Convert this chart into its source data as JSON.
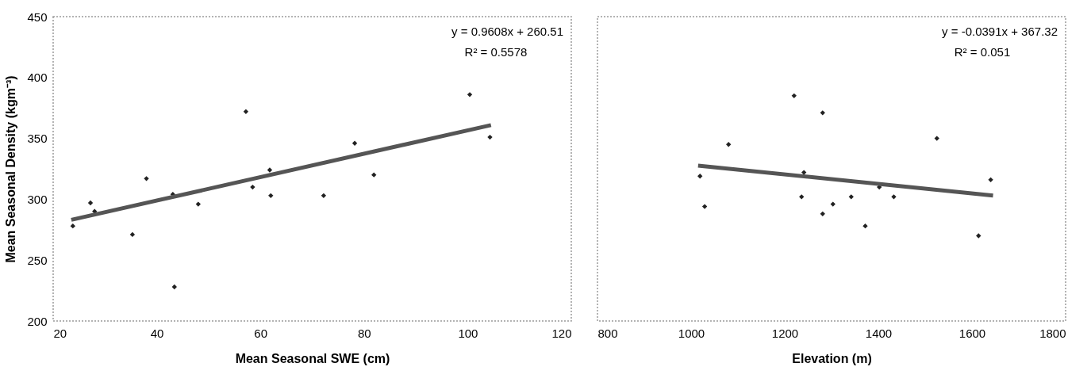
{
  "chart_data": [
    {
      "type": "scatter",
      "xlabel": "Mean Seasonal SWE (cm)",
      "ylabel": "Mean Seasonal Density (kgm⁻³)",
      "xlim": [
        20,
        120
      ],
      "xticks": [
        20,
        40,
        60,
        80,
        100,
        120
      ],
      "ylim": [
        200,
        450
      ],
      "yticks": [
        200,
        250,
        300,
        350,
        400,
        450
      ],
      "grid": false,
      "legend": false,
      "annotations": [
        "y = 0.9608x + 260.51",
        "R² = 0.5578"
      ],
      "series": [
        {
          "type": "scatter",
          "marker": "diamond",
          "color": "#222222",
          "x": [
            23.8,
            27.2,
            28.0,
            35.3,
            38.0,
            43.1,
            43.4,
            48.0,
            57.2,
            58.5,
            61.8,
            62.0,
            72.2,
            78.2,
            81.9,
            100.4,
            104.3
          ],
          "values": [
            278,
            297,
            290,
            271,
            317,
            304,
            228,
            296,
            372,
            310,
            324,
            303,
            303,
            346,
            320,
            386,
            351
          ]
        },
        {
          "type": "line",
          "color": "#555555",
          "line_style": "solid",
          "x": [
            23.5,
            104.5
          ],
          "values": [
            283.1,
            360.9
          ]
        }
      ]
    },
    {
      "type": "scatter",
      "xlabel": "Elevation (m)",
      "xlim": [
        800,
        1800
      ],
      "xticks": [
        800,
        1000,
        1200,
        1400,
        1600,
        1800
      ],
      "ylim": [
        200,
        450
      ],
      "yticks": [
        200,
        250,
        300,
        350,
        400,
        450
      ],
      "tick_labels": "x",
      "grid": false,
      "legend": false,
      "annotations": [
        "y = -0.0391x + 367.32",
        "R² = 0.051"
      ],
      "series": [
        {
          "type": "scatter",
          "marker": "diamond",
          "color": "#222222",
          "x": [
            1019,
            1029,
            1080,
            1220,
            1241,
            1236,
            1281,
            1281,
            1303,
            1342,
            1372,
            1402,
            1433,
            1525,
            1614,
            1640
          ],
          "values": [
            319,
            294,
            345,
            385,
            322,
            302,
            371,
            288,
            296,
            302,
            278,
            310,
            302,
            350,
            270,
            316
          ]
        },
        {
          "type": "line",
          "color": "#555555",
          "line_style": "solid",
          "x": [
            1015,
            1645
          ],
          "values": [
            327.6,
            303.0
          ]
        }
      ]
    }
  ]
}
